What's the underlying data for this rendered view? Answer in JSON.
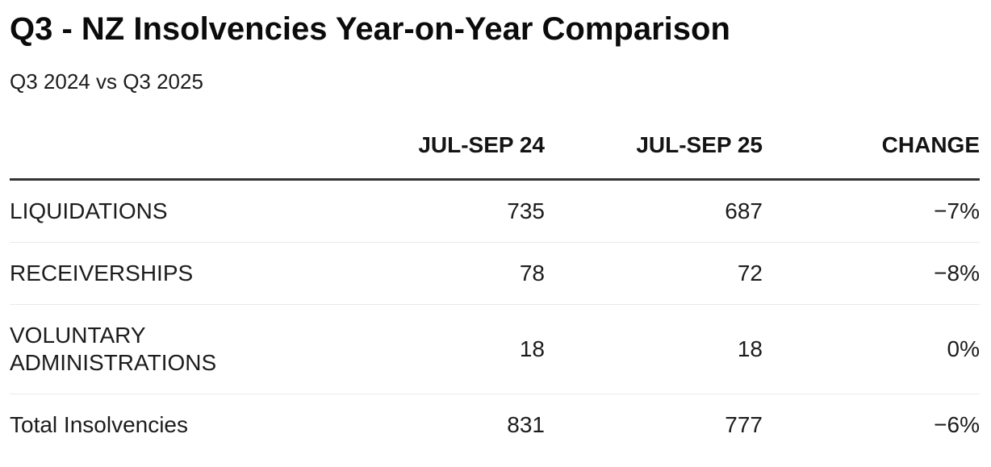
{
  "header": {
    "title": "Q3 - NZ Insolvencies Year-on-Year Comparison",
    "subtitle": "Q3 2024 vs Q3 2025"
  },
  "table": {
    "columns": [
      "",
      "JUL-SEP 24",
      "JUL-SEP 25",
      "CHANGE"
    ],
    "rows": [
      {
        "label": "LIQUIDATIONS",
        "jul_sep_24": "735",
        "jul_sep_25": "687",
        "change": "−7%"
      },
      {
        "label": "RECEIVERSHIPS",
        "jul_sep_24": "78",
        "jul_sep_25": "72",
        "change": "−8%"
      },
      {
        "label": "VOLUNTARY ADMINISTRATIONS",
        "jul_sep_24": "18",
        "jul_sep_25": "18",
        "change": "0%"
      },
      {
        "label": "Total Insolvencies",
        "jul_sep_24": "831",
        "jul_sep_25": "777",
        "change": "−6%"
      }
    ]
  },
  "chart_data": {
    "type": "table",
    "title": "Q3 - NZ Insolvencies Year-on-Year Comparison",
    "subtitle": "Q3 2024 vs Q3 2025",
    "columns": [
      "",
      "JUL-SEP 24",
      "JUL-SEP 25",
      "CHANGE"
    ],
    "categories": [
      "LIQUIDATIONS",
      "RECEIVERSHIPS",
      "VOLUNTARY ADMINISTRATIONS",
      "Total Insolvencies"
    ],
    "series": [
      {
        "name": "JUL-SEP 24",
        "values": [
          735,
          78,
          18,
          831
        ]
      },
      {
        "name": "JUL-SEP 25",
        "values": [
          687,
          72,
          18,
          777
        ]
      },
      {
        "name": "CHANGE",
        "values": [
          "−7%",
          "−8%",
          "0%",
          "−6%"
        ]
      }
    ]
  },
  "colors": {
    "background": "#ffffff",
    "text": "#1c1c1c",
    "title_text": "#0b0b0b",
    "header_rule": "#333333",
    "row_rule": "#e9e9e9"
  }
}
